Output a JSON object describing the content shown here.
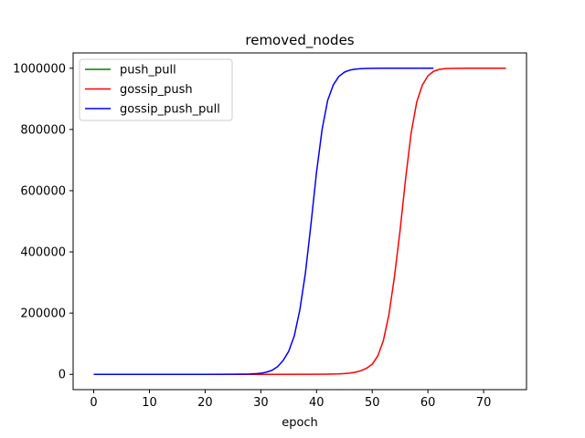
{
  "chart_data": {
    "type": "line",
    "title": "removed_nodes",
    "xlabel": "epoch",
    "ylabel": "",
    "xlim": [
      -3.7,
      77.7
    ],
    "ylim": [
      -50000,
      1050000
    ],
    "xticks": [
      0,
      10,
      20,
      30,
      40,
      50,
      60,
      70
    ],
    "yticks": [
      0,
      200000,
      400000,
      600000,
      800000,
      1000000
    ],
    "grid": false,
    "legend_position": "top-left",
    "series": [
      {
        "name": "push_pull",
        "color": "#008000",
        "x": [],
        "y": []
      },
      {
        "name": "gossip_push",
        "color": "#ff0000",
        "x": [
          0,
          10,
          20,
          30,
          40,
          42,
          44,
          45,
          46,
          47,
          48,
          49,
          50,
          51,
          52,
          53,
          54,
          55,
          56,
          57,
          58,
          59,
          60,
          61,
          62,
          63,
          64,
          65,
          66,
          68,
          70,
          72,
          74
        ],
        "y": [
          0,
          0,
          0,
          0,
          300,
          700,
          1500,
          2500,
          4000,
          7000,
          12000,
          20000,
          33000,
          60000,
          110000,
          195000,
          320000,
          470000,
          640000,
          790000,
          890000,
          945000,
          975000,
          990000,
          996000,
          998500,
          999300,
          999700,
          999850,
          999950,
          999990,
          1000000,
          1000000
        ]
      },
      {
        "name": "gossip_push_pull",
        "color": "#0000ff",
        "x": [
          0,
          10,
          20,
          25,
          28,
          29,
          30,
          31,
          32,
          33,
          34,
          35,
          36,
          37,
          38,
          39,
          40,
          41,
          42,
          43,
          44,
          45,
          46,
          47,
          48,
          49,
          50,
          52,
          54,
          56,
          58,
          60,
          61
        ],
        "y": [
          0,
          0,
          0,
          200,
          1000,
          2000,
          3500,
          7000,
          13000,
          25000,
          45000,
          75000,
          125000,
          210000,
          330000,
          490000,
          660000,
          800000,
          895000,
          945000,
          973000,
          987000,
          994000,
          997000,
          998500,
          999300,
          999700,
          999900,
          999970,
          999990,
          1000000,
          1000000,
          1000000
        ]
      }
    ]
  }
}
